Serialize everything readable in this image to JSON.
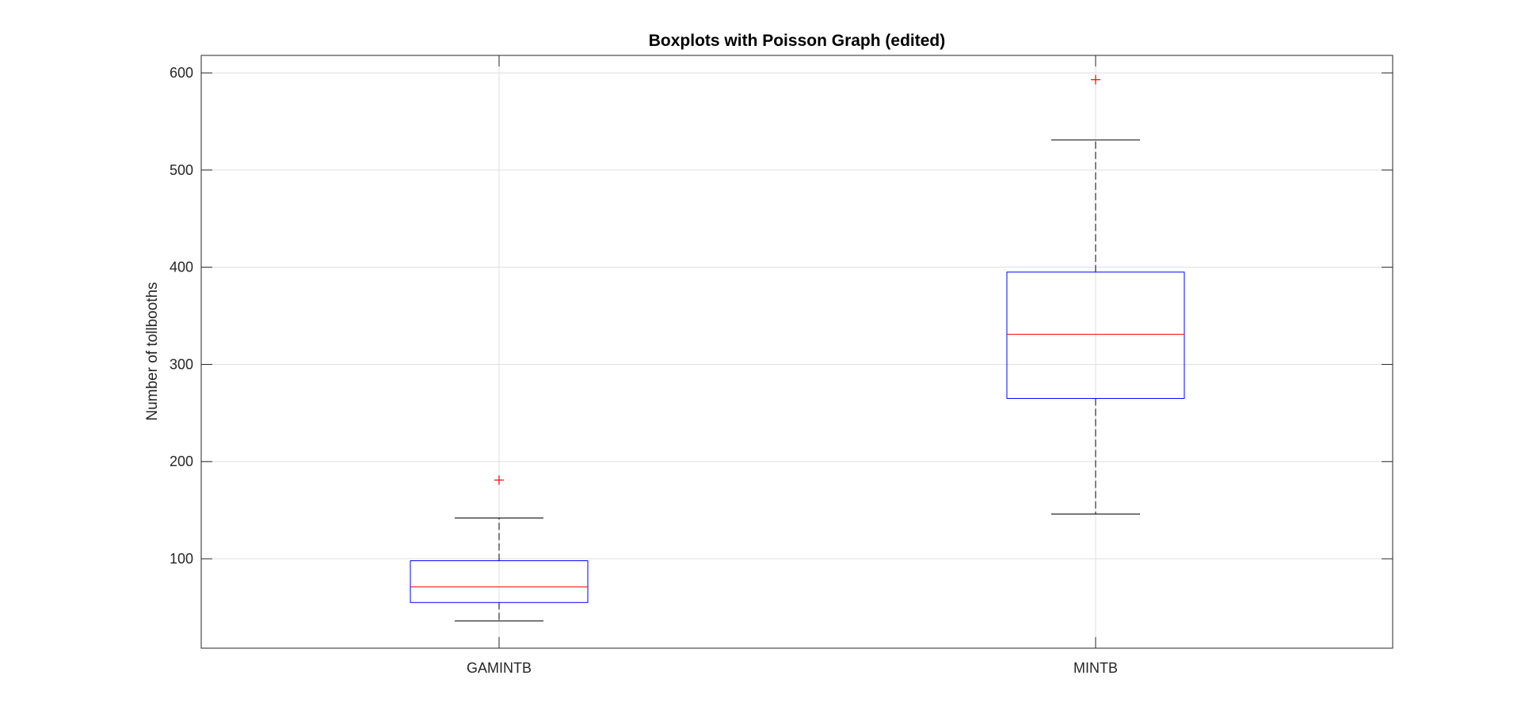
{
  "chart_data": {
    "type": "boxplot",
    "title": "Boxplots with Poisson Graph (edited)",
    "xlabel": "",
    "ylabel": "Number of tollbooths",
    "categories": [
      "GAMINTB",
      "MINTB"
    ],
    "ylim": [
      8,
      618
    ],
    "yticks": [
      100,
      200,
      300,
      400,
      500,
      600
    ],
    "ytick_labels": [
      "100",
      "200",
      "300",
      "400",
      "500",
      "600"
    ],
    "grid": true,
    "boxes": [
      {
        "category": "GAMINTB",
        "whisker_low": 36,
        "q1": 55,
        "median": 71,
        "q3": 98,
        "whisker_high": 142,
        "outliers": [
          181
        ]
      },
      {
        "category": "MINTB",
        "whisker_low": 146,
        "q1": 265,
        "median": 331,
        "q3": 395,
        "whisker_high": 531,
        "outliers": [
          593
        ]
      }
    ],
    "colors": {
      "box": "#0000ff",
      "median": "#ff0000",
      "whisker": "#000000",
      "outlier": "#ff0000",
      "axes": "#262626",
      "grid": "#dfdfdf"
    }
  }
}
